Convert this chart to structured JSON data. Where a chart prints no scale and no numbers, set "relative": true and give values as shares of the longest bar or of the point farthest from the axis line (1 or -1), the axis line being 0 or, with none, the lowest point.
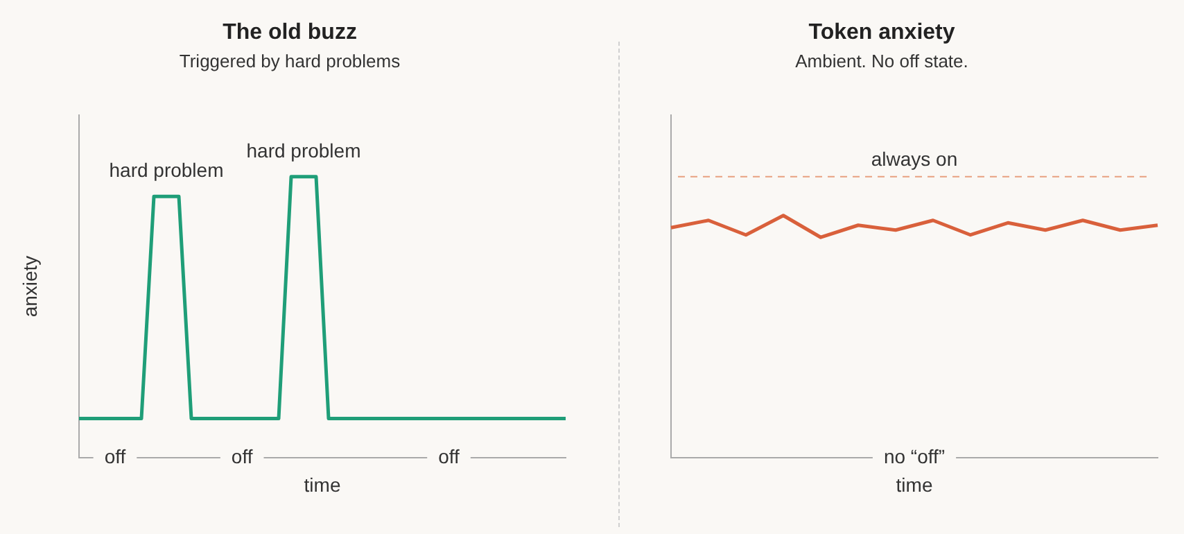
{
  "chart_data": [
    {
      "type": "line",
      "title": "The old buzz",
      "subtitle": "Triggered by hard problems",
      "xlabel": "time",
      "ylabel": "anxiety",
      "relative": true,
      "categories": [
        null,
        null,
        null,
        null,
        null,
        null,
        null,
        null,
        null,
        null,
        null,
        null,
        null,
        null,
        null,
        null,
        null,
        null,
        null,
        null,
        null,
        null,
        null,
        null,
        null,
        null,
        null,
        null,
        null,
        null,
        null,
        null,
        null,
        null,
        null,
        null,
        null,
        null,
        null,
        null
      ],
      "series": [
        {
          "color": "#1f9e78",
          "values": [
            0.14,
            0.14,
            0.14,
            0.14,
            0.14,
            0.14,
            0.93,
            0.93,
            0.93,
            0.14,
            0.14,
            0.14,
            0.14,
            0.14,
            0.14,
            0.14,
            0.14,
            1,
            1,
            1,
            0.14,
            0.14,
            0.14,
            0.14,
            0.14,
            0.14,
            0.14,
            0.14,
            0.14,
            0.14,
            0.14,
            0.14,
            0.14,
            0.14,
            0.14,
            0.14,
            0.14,
            0.14,
            0.14,
            0.14
          ]
        }
      ],
      "annotations": [
        "hard problem",
        "hard problem",
        "off",
        "off",
        "off"
      ]
    },
    {
      "type": "line",
      "title": "Token anxiety",
      "subtitle": "Ambient. No off state.",
      "xlabel": "time",
      "relative": true,
      "categories": [
        null,
        null,
        null,
        null,
        null,
        null,
        null,
        null,
        null,
        null,
        null,
        null,
        null,
        null
      ],
      "series": [
        {
          "color": "#d9603b",
          "values": [
            0.95,
            0.98,
            0.92,
            1,
            0.91,
            0.96,
            0.94,
            0.98,
            0.92,
            0.97,
            0.94,
            0.98,
            0.94,
            0.96
          ]
        }
      ],
      "ref_lines": [
        {
          "axis": "y",
          "value": 1.16,
          "label": "always on",
          "color": "#e8a080",
          "line_style": "dashed"
        }
      ],
      "annotations": [
        "no “off”"
      ]
    }
  ]
}
